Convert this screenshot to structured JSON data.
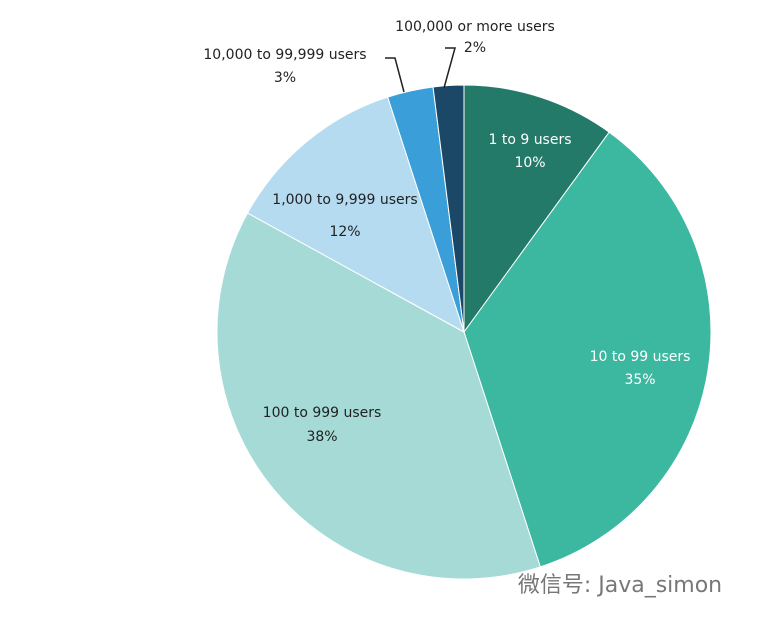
{
  "chart_data": {
    "type": "pie",
    "categories": [
      "1 to 9 users",
      "10 to 99 users",
      "100 to 999 users",
      "1,000 to 9,999 users",
      "10,000 to 99,999 users",
      "100,000 or more users"
    ],
    "values": [
      10,
      35,
      38,
      12,
      3,
      2
    ],
    "value_labels": [
      "10%",
      "35%",
      "38%",
      "12%",
      "3%",
      "2%"
    ],
    "colors": [
      "#247a69",
      "#3cb8a0",
      "#a6dad6",
      "#b5dbf1",
      "#3a9fd8",
      "#1b4866"
    ]
  },
  "watermark": "微信号: Java_simon"
}
